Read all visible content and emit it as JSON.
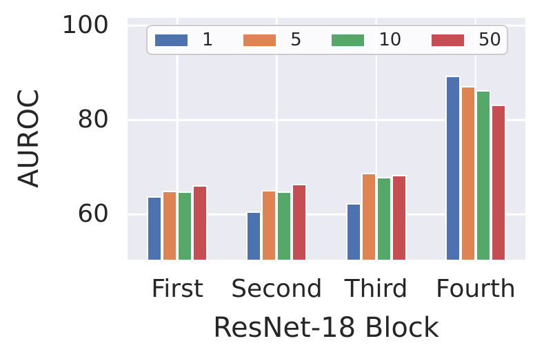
{
  "chart_data": {
    "type": "bar",
    "title": "",
    "xlabel": "ResNet-18 Block",
    "ylabel": "AUROC",
    "categories": [
      "First",
      "Second",
      "Third",
      "Fourth"
    ],
    "series": [
      {
        "name": "1",
        "color": "#4C72B0",
        "values": [
          63.8,
          60.6,
          62.4,
          89.3
        ]
      },
      {
        "name": "5",
        "color": "#DD8452",
        "values": [
          65.0,
          65.1,
          68.8,
          87.2
        ]
      },
      {
        "name": "10",
        "color": "#55A868",
        "values": [
          64.9,
          64.9,
          67.9,
          86.3
        ]
      },
      {
        "name": "50",
        "color": "#C44E52",
        "values": [
          66.2,
          66.4,
          68.4,
          83.2
        ]
      }
    ],
    "ylim": [
      50.4,
      101.6
    ],
    "yticks": [
      60,
      80,
      100
    ],
    "grid": true,
    "legend_position": "upper center",
    "colors": {
      "plot_background": "#EAEAF2",
      "grid": "#FFFFFF",
      "text": "#262626",
      "legend_border": "#CCCCCC"
    }
  }
}
